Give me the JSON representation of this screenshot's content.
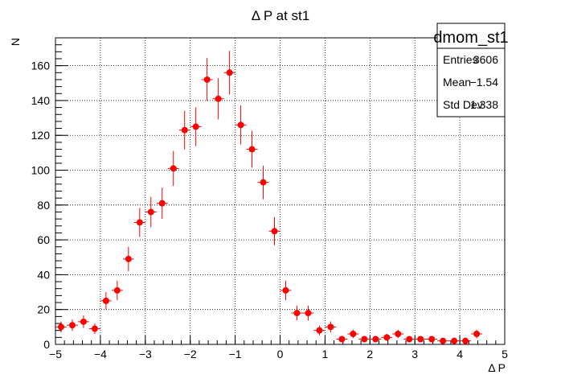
{
  "chart_data": {
    "type": "scatter",
    "title": "Δ P at st1",
    "xlabel": "Δ P",
    "ylabel": "N",
    "xlim": [
      -5,
      5
    ],
    "ylim": [
      0,
      176
    ],
    "grid": true,
    "xticks": [
      -5,
      -4,
      -3,
      -2,
      -1,
      0,
      1,
      2,
      3,
      4,
      5
    ],
    "xtick_labels": [
      "−5",
      "−4",
      "−3",
      "−2",
      "−1",
      "0",
      "1",
      "2",
      "3",
      "4",
      "5"
    ],
    "yticks": [
      0,
      20,
      40,
      60,
      80,
      100,
      120,
      140,
      160
    ],
    "ytick_labels": [
      "0",
      "20",
      "40",
      "60",
      "80",
      "100",
      "120",
      "140",
      "160"
    ],
    "marker_color": "#ff0000",
    "bin_width": 0.25,
    "x": [
      -4.875,
      -4.625,
      -4.375,
      -4.125,
      -3.875,
      -3.625,
      -3.375,
      -3.125,
      -2.875,
      -2.625,
      -2.375,
      -2.125,
      -1.875,
      -1.625,
      -1.375,
      -1.125,
      -0.875,
      -0.625,
      -0.375,
      -0.125,
      0.125,
      0.375,
      0.625,
      0.875,
      1.125,
      1.375,
      1.625,
      1.875,
      2.125,
      2.375,
      2.625,
      2.875,
      3.125,
      3.375,
      3.625,
      3.875,
      4.125,
      4.375
    ],
    "y": [
      10,
      11,
      13,
      9,
      25,
      31,
      49,
      70,
      76,
      81,
      101,
      123,
      125,
      152,
      141,
      156,
      126,
      112,
      93,
      65,
      31,
      18,
      18,
      8,
      10,
      3,
      6,
      3,
      3,
      4,
      6,
      3,
      3,
      3,
      2,
      2,
      2,
      6
    ]
  },
  "stats_box": {
    "name": "dmom_st1",
    "rows": [
      {
        "label": "Entries",
        "value": "3606"
      },
      {
        "label": "Mean",
        "value": "−1.54"
      },
      {
        "label": "Std Dev",
        "value": "1.338"
      }
    ]
  }
}
